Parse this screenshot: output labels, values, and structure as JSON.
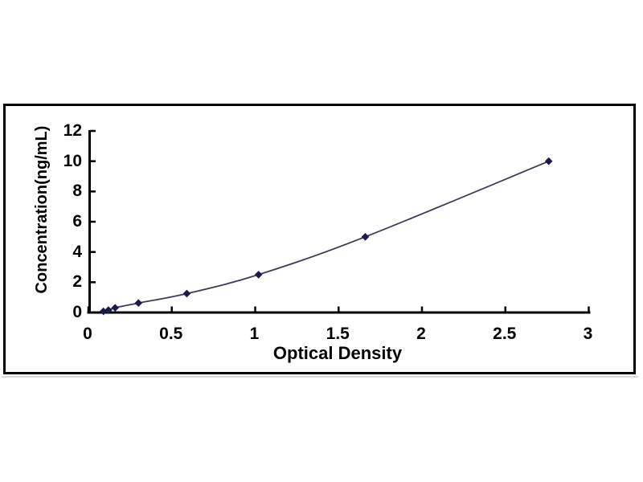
{
  "page": {
    "background": "#ffffff"
  },
  "frame": {
    "border_color": "#000000",
    "shadow_color": "#d9d9d9"
  },
  "chart_data": {
    "type": "line",
    "title": "",
    "xlabel": "Optical Density",
    "ylabel": "Concentration(ng/mL)",
    "xlim": [
      0,
      3
    ],
    "ylim": [
      0,
      12
    ],
    "xticks": [
      0,
      0.5,
      1,
      1.5,
      2,
      2.5,
      3
    ],
    "xtick_labels": [
      "0",
      "0.5",
      "1",
      "1.5",
      "2",
      "2.5",
      "3"
    ],
    "yticks": [
      0,
      2,
      4,
      6,
      8,
      10,
      12
    ],
    "ytick_labels": [
      "0",
      "2",
      "4",
      "6",
      "8",
      "10",
      "12"
    ],
    "grid": false,
    "legend": "none",
    "axis_color": "#000000",
    "series": [
      {
        "name": "standard-curve",
        "marker": "diamond",
        "line_color": "#3c3c58",
        "marker_color": "#1b1b4a",
        "points": [
          {
            "x": 0.09,
            "y": 0.078
          },
          {
            "x": 0.12,
            "y": 0.156
          },
          {
            "x": 0.16,
            "y": 0.3125
          },
          {
            "x": 0.3,
            "y": 0.625
          },
          {
            "x": 0.59,
            "y": 1.25
          },
          {
            "x": 1.02,
            "y": 2.5
          },
          {
            "x": 1.66,
            "y": 5
          },
          {
            "x": 2.76,
            "y": 10
          }
        ]
      }
    ]
  }
}
